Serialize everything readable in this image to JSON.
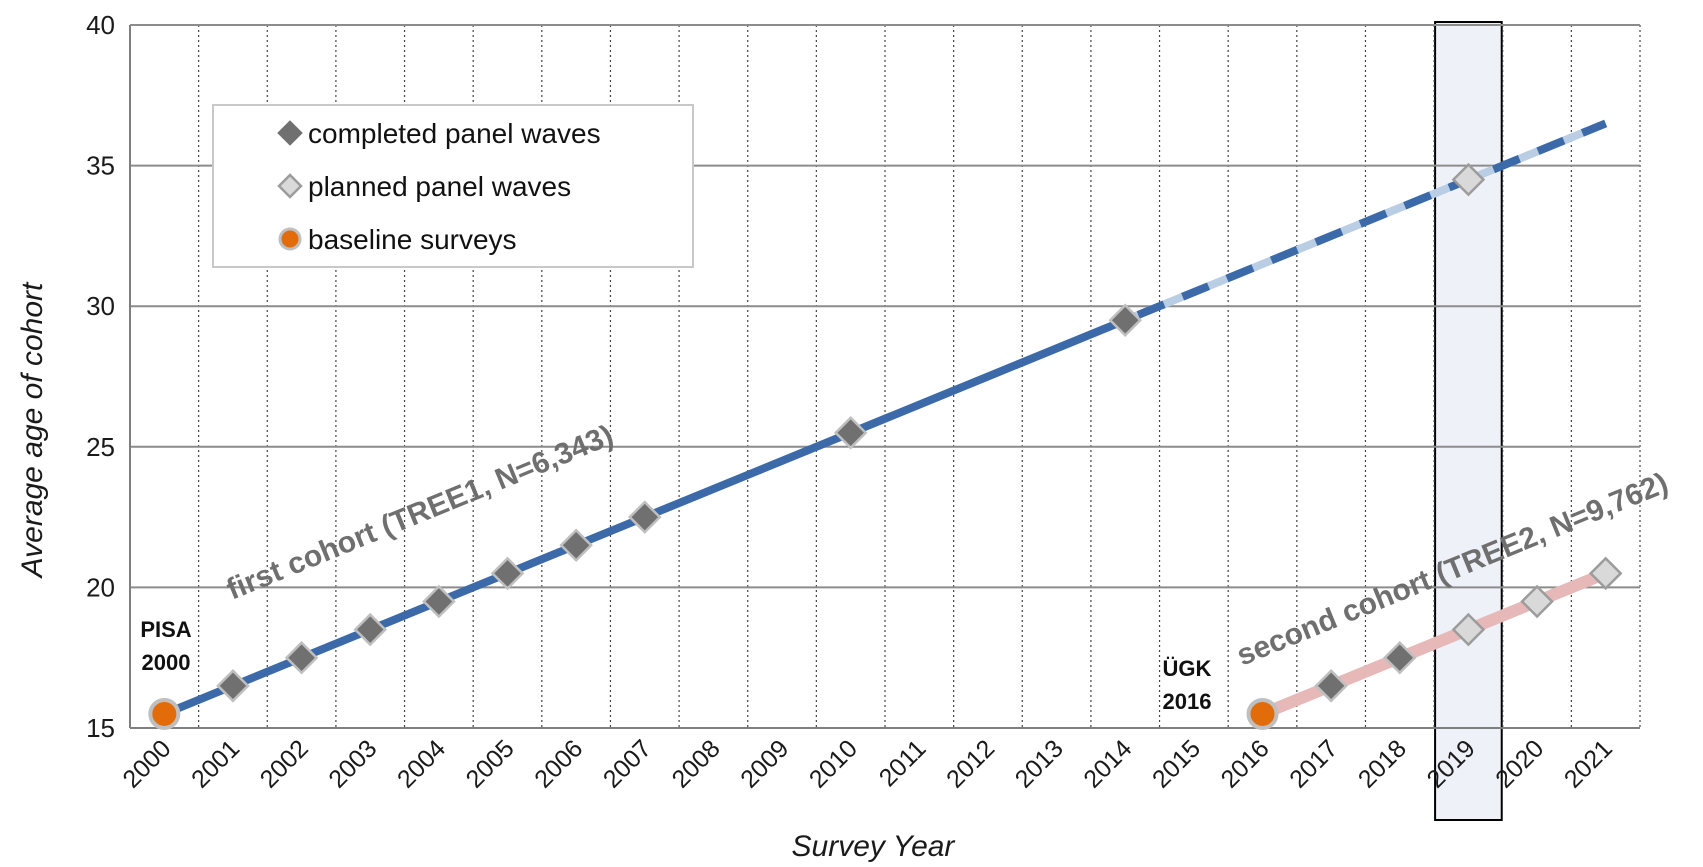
{
  "chart_data": {
    "type": "line",
    "xlabel": "Survey Year",
    "ylabel": "Average age of cohort",
    "categories": [
      "2000",
      "2001",
      "2002",
      "2003",
      "2004",
      "2005",
      "2006",
      "2007",
      "2008",
      "2009",
      "2010",
      "2011",
      "2012",
      "2013",
      "2014",
      "2015",
      "2016",
      "2017",
      "2018",
      "2019",
      "2020",
      "2021"
    ],
    "ylim": [
      15,
      40
    ],
    "yticks": [
      15,
      20,
      25,
      30,
      35,
      40
    ],
    "grid": {
      "horizontal": "solid",
      "vertical": "dotted"
    },
    "highlight_category": "2019",
    "legend": {
      "placement": "top-left",
      "entries": [
        {
          "label": "completed panel waves",
          "marker": "diamond",
          "color": "#707070"
        },
        {
          "label": "planned panel waves",
          "marker": "diamond",
          "color": "#d9d9d9"
        },
        {
          "label": "baseline surveys",
          "marker": "circle",
          "color": "#e36c0a"
        }
      ]
    },
    "series": [
      {
        "name": "first cohort (TREE1, N=6,343)",
        "color": "#3c6aa8",
        "planned_color": "#b9cde5",
        "baseline": {
          "x": "2000",
          "y": 15.5
        },
        "completed": [
          {
            "x": "2001",
            "y": 16.5
          },
          {
            "x": "2002",
            "y": 17.5
          },
          {
            "x": "2003",
            "y": 18.5
          },
          {
            "x": "2004",
            "y": 19.5
          },
          {
            "x": "2005",
            "y": 20.5
          },
          {
            "x": "2006",
            "y": 21.5
          },
          {
            "x": "2007",
            "y": 22.5
          },
          {
            "x": "2010",
            "y": 25.5
          },
          {
            "x": "2014",
            "y": 29.5
          }
        ],
        "planned": [
          {
            "x": "2019",
            "y": 34.5
          }
        ],
        "trend_end": {
          "x": "2021",
          "y": 36.5
        }
      },
      {
        "name": "second cohort (TREE2, N=9,762)",
        "color": "#e6b9b8",
        "planned_color": "#e6b9b8",
        "baseline": {
          "x": "2016",
          "y": 15.5
        },
        "completed": [
          {
            "x": "2017",
            "y": 16.5
          },
          {
            "x": "2018",
            "y": 17.5
          }
        ],
        "planned": [
          {
            "x": "2019",
            "y": 18.5
          },
          {
            "x": "2020",
            "y": 19.5
          },
          {
            "x": "2021",
            "y": 20.5
          }
        ]
      }
    ],
    "annotations": [
      {
        "lines": [
          "PISA",
          "2000"
        ]
      },
      {
        "lines": [
          "ÜGK",
          "2016"
        ]
      }
    ]
  }
}
